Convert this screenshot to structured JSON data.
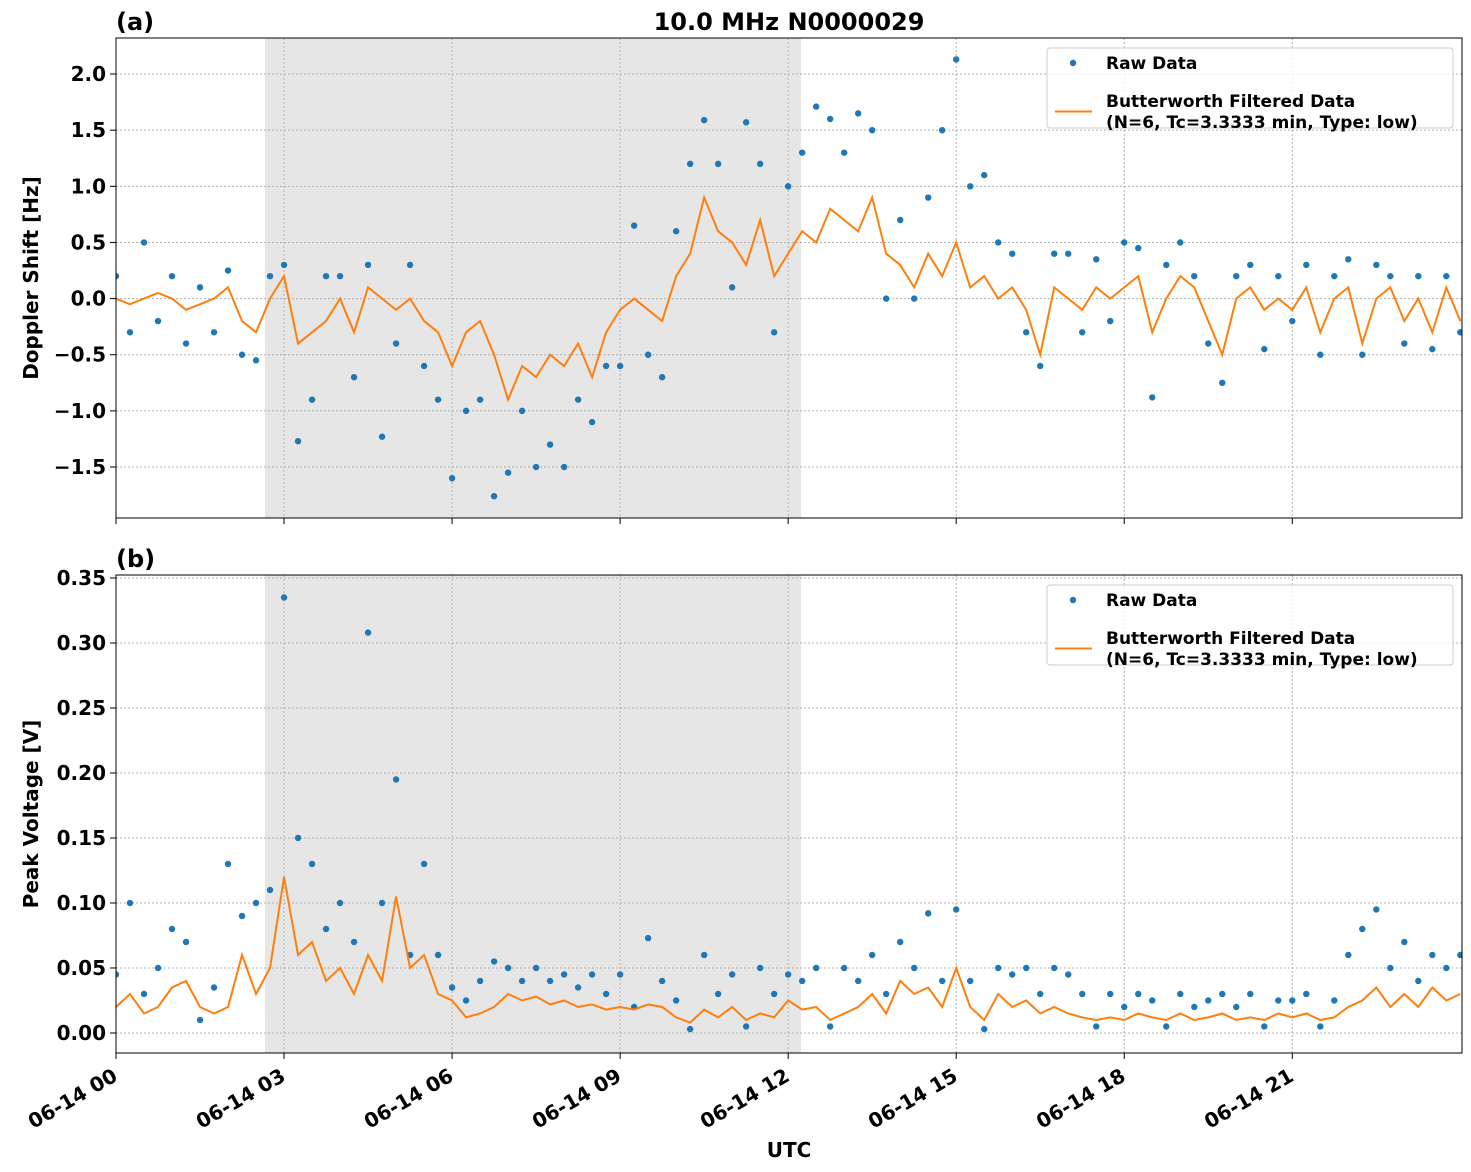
{
  "chart_data": [
    {
      "type": "line",
      "panel_label": "(a)",
      "title": "10.0 MHz N0000029",
      "ylabel": "Doppler Shift [Hz]",
      "xlim": [
        0,
        24.03
      ],
      "xticks": [
        0,
        3,
        6,
        9,
        12,
        15,
        18,
        21
      ],
      "xtick_labels": false,
      "ylim": [
        -1.954,
        2.321
      ],
      "yticks": [
        {
          "value": -1.5,
          "label": "−1.5"
        },
        {
          "value": -1.0,
          "label": "−1.0"
        },
        {
          "value": -0.5,
          "label": "−0.5"
        },
        {
          "value": 0,
          "label": "0.0"
        },
        {
          "value": 0.5,
          "label": "0.5"
        },
        {
          "value": 1.0,
          "label": "1.0"
        },
        {
          "value": 1.5,
          "label": "1.5"
        },
        {
          "value": 2.0,
          "label": "2.0"
        }
      ],
      "grid": true,
      "legend": "upper right",
      "shaded_span": [
        2.66,
        12.23
      ],
      "x": [
        0,
        0.25,
        0.5,
        0.75,
        1,
        1.25,
        1.5,
        1.75,
        2,
        2.25,
        2.5,
        2.75,
        3,
        3.25,
        3.5,
        3.75,
        4,
        4.25,
        4.5,
        4.75,
        5,
        5.25,
        5.5,
        5.75,
        6,
        6.25,
        6.5,
        6.75,
        7,
        7.25,
        7.5,
        7.75,
        8,
        8.25,
        8.5,
        8.75,
        9,
        9.25,
        9.5,
        9.75,
        10,
        10.25,
        10.5,
        10.75,
        11,
        11.25,
        11.5,
        11.75,
        12,
        12.25,
        12.5,
        12.75,
        13,
        13.25,
        13.5,
        13.75,
        14,
        14.25,
        14.5,
        14.75,
        15,
        15.25,
        15.5,
        15.75,
        16,
        16.25,
        16.5,
        16.75,
        17,
        17.25,
        17.5,
        17.75,
        18,
        18.25,
        18.5,
        18.75,
        19,
        19.25,
        19.5,
        19.75,
        20,
        20.25,
        20.5,
        20.75,
        21,
        21.25,
        21.5,
        21.75,
        22,
        22.25,
        22.5,
        22.75,
        23,
        23.25,
        23.5,
        23.75,
        24
      ],
      "series": [
        {
          "name": "Raw Data",
          "style": "markers",
          "color": "#1f77b4",
          "values": [
            0.2,
            -0.3,
            0.5,
            -0.2,
            0.2,
            -0.4,
            0.1,
            -0.3,
            0.25,
            -0.5,
            -0.55,
            0.2,
            0.3,
            -1.27,
            -0.9,
            0.2,
            0.2,
            -0.7,
            0.3,
            -1.23,
            -0.4,
            0.3,
            -0.6,
            -0.9,
            -1.6,
            -1.0,
            -0.9,
            -1.76,
            -1.55,
            -1.0,
            -1.5,
            -1.3,
            -1.5,
            -0.9,
            -1.1,
            -0.6,
            -0.6,
            0.65,
            -0.5,
            -0.7,
            0.6,
            1.2,
            1.59,
            1.2,
            0.1,
            1.57,
            1.2,
            -0.3,
            1.0,
            1.3,
            1.71,
            1.6,
            1.3,
            1.65,
            1.5,
            0.0,
            0.7,
            0.0,
            0.9,
            1.5,
            2.13,
            1.0,
            1.1,
            0.5,
            0.4,
            -0.3,
            -0.6,
            0.4,
            0.4,
            -0.3,
            0.35,
            -0.2,
            0.5,
            0.45,
            -0.88,
            0.3,
            0.5,
            0.2,
            -0.4,
            -0.75,
            0.2,
            0.3,
            -0.45,
            0.2,
            -0.2,
            0.3,
            -0.5,
            0.2,
            0.35,
            -0.5,
            0.3,
            0.2,
            -0.4,
            0.2,
            -0.45,
            0.2,
            -0.3
          ]
        },
        {
          "name": "Butterworth Filtered Data\n(N=6, Tc=3.3333 min, Type: low)",
          "style": "line",
          "color": "#ff7f0e",
          "values": [
            0.0,
            -0.05,
            0.0,
            0.05,
            0.0,
            -0.1,
            -0.05,
            0.0,
            0.1,
            -0.2,
            -0.3,
            0.0,
            0.2,
            -0.4,
            -0.3,
            -0.2,
            0.0,
            -0.3,
            0.1,
            0.0,
            -0.1,
            0.0,
            -0.2,
            -0.3,
            -0.6,
            -0.3,
            -0.2,
            -0.5,
            -0.9,
            -0.6,
            -0.7,
            -0.5,
            -0.6,
            -0.4,
            -0.7,
            -0.3,
            -0.1,
            0.0,
            -0.1,
            -0.2,
            0.2,
            0.4,
            0.9,
            0.6,
            0.5,
            0.3,
            0.7,
            0.2,
            0.4,
            0.6,
            0.5,
            0.8,
            0.7,
            0.6,
            0.9,
            0.4,
            0.3,
            0.1,
            0.4,
            0.2,
            0.5,
            0.1,
            0.2,
            0.0,
            0.1,
            -0.1,
            -0.5,
            0.1,
            0.0,
            -0.1,
            0.1,
            0.0,
            0.1,
            0.2,
            -0.3,
            0.0,
            0.2,
            0.1,
            -0.2,
            -0.5,
            0.0,
            0.1,
            -0.1,
            0.0,
            -0.1,
            0.1,
            -0.3,
            0.0,
            0.1,
            -0.4,
            0.0,
            0.1,
            -0.2,
            0.0,
            -0.3,
            0.1,
            -0.2
          ]
        }
      ]
    },
    {
      "type": "line",
      "panel_label": "(b)",
      "ylabel": "Peak Voltage [V]",
      "xlabel": "UTC",
      "xlim": [
        0,
        24.03
      ],
      "xticks": [
        {
          "value": 0,
          "label": "06-14 00"
        },
        {
          "value": 3,
          "label": "06-14 03"
        },
        {
          "value": 6,
          "label": "06-14 06"
        },
        {
          "value": 9,
          "label": "06-14 09"
        },
        {
          "value": 12,
          "label": "06-14 12"
        },
        {
          "value": 15,
          "label": "06-14 15"
        },
        {
          "value": 18,
          "label": "06-14 18"
        },
        {
          "value": 21,
          "label": "06-14 21"
        }
      ],
      "xtick_labels": true,
      "ylim": [
        -0.0154,
        0.3523
      ],
      "yticks": [
        {
          "value": 0,
          "label": "0.00"
        },
        {
          "value": 0.05,
          "label": "0.05"
        },
        {
          "value": 0.1,
          "label": "0.10"
        },
        {
          "value": 0.15,
          "label": "0.15"
        },
        {
          "value": 0.2,
          "label": "0.20"
        },
        {
          "value": 0.25,
          "label": "0.25"
        },
        {
          "value": 0.3,
          "label": "0.30"
        },
        {
          "value": 0.35,
          "label": "0.35"
        }
      ],
      "grid": true,
      "legend": "upper right",
      "shaded_span": [
        2.66,
        12.23
      ],
      "x": [
        0,
        0.25,
        0.5,
        0.75,
        1,
        1.25,
        1.5,
        1.75,
        2,
        2.25,
        2.5,
        2.75,
        3,
        3.25,
        3.5,
        3.75,
        4,
        4.25,
        4.5,
        4.75,
        5,
        5.25,
        5.5,
        5.75,
        6,
        6.25,
        6.5,
        6.75,
        7,
        7.25,
        7.5,
        7.75,
        8,
        8.25,
        8.5,
        8.75,
        9,
        9.25,
        9.5,
        9.75,
        10,
        10.25,
        10.5,
        10.75,
        11,
        11.25,
        11.5,
        11.75,
        12,
        12.25,
        12.5,
        12.75,
        13,
        13.25,
        13.5,
        13.75,
        14,
        14.25,
        14.5,
        14.75,
        15,
        15.25,
        15.5,
        15.75,
        16,
        16.25,
        16.5,
        16.75,
        17,
        17.25,
        17.5,
        17.75,
        18,
        18.25,
        18.5,
        18.75,
        19,
        19.25,
        19.5,
        19.75,
        20,
        20.25,
        20.5,
        20.75,
        21,
        21.25,
        21.5,
        21.75,
        22,
        22.25,
        22.5,
        22.75,
        23,
        23.25,
        23.5,
        23.75,
        24
      ],
      "series": [
        {
          "name": "Raw Data",
          "style": "markers",
          "color": "#1f77b4",
          "values": [
            0.045,
            0.1,
            0.03,
            0.05,
            0.08,
            0.07,
            0.01,
            0.035,
            0.13,
            0.09,
            0.1,
            0.11,
            0.335,
            0.15,
            0.13,
            0.08,
            0.1,
            0.07,
            0.308,
            0.1,
            0.195,
            0.06,
            0.13,
            0.06,
            0.035,
            0.025,
            0.04,
            0.055,
            0.05,
            0.04,
            0.05,
            0.04,
            0.045,
            0.035,
            0.045,
            0.03,
            0.045,
            0.02,
            0.073,
            0.04,
            0.025,
            0.003,
            0.06,
            0.03,
            0.045,
            0.005,
            0.05,
            0.03,
            0.045,
            0.04,
            0.05,
            0.005,
            0.05,
            0.04,
            0.06,
            0.03,
            0.07,
            0.05,
            0.092,
            0.04,
            0.095,
            0.04,
            0.003,
            0.05,
            0.045,
            0.05,
            0.03,
            0.05,
            0.045,
            0.03,
            0.005,
            0.03,
            0.02,
            0.03,
            0.025,
            0.005,
            0.03,
            0.02,
            0.025,
            0.03,
            0.02,
            0.03,
            0.005,
            0.025,
            0.025,
            0.03,
            0.005,
            0.025,
            0.06,
            0.08,
            0.095,
            0.05,
            0.07,
            0.04,
            0.06,
            0.05,
            0.06
          ]
        },
        {
          "name": "Butterworth Filtered Data\n(N=6, Tc=3.3333 min, Type: low)",
          "style": "line",
          "color": "#ff7f0e",
          "values": [
            0.02,
            0.03,
            0.015,
            0.02,
            0.035,
            0.04,
            0.02,
            0.015,
            0.02,
            0.06,
            0.03,
            0.05,
            0.12,
            0.06,
            0.07,
            0.04,
            0.05,
            0.03,
            0.06,
            0.04,
            0.105,
            0.05,
            0.06,
            0.03,
            0.025,
            0.012,
            0.015,
            0.02,
            0.03,
            0.025,
            0.028,
            0.022,
            0.025,
            0.02,
            0.022,
            0.018,
            0.02,
            0.018,
            0.022,
            0.02,
            0.012,
            0.008,
            0.018,
            0.012,
            0.02,
            0.01,
            0.015,
            0.012,
            0.025,
            0.018,
            0.02,
            0.01,
            0.015,
            0.02,
            0.03,
            0.015,
            0.04,
            0.03,
            0.035,
            0.02,
            0.05,
            0.02,
            0.01,
            0.03,
            0.02,
            0.025,
            0.015,
            0.02,
            0.015,
            0.012,
            0.01,
            0.012,
            0.01,
            0.015,
            0.012,
            0.01,
            0.015,
            0.01,
            0.012,
            0.015,
            0.01,
            0.012,
            0.01,
            0.015,
            0.012,
            0.015,
            0.01,
            0.012,
            0.02,
            0.025,
            0.035,
            0.02,
            0.03,
            0.02,
            0.035,
            0.025,
            0.03
          ]
        }
      ]
    }
  ]
}
